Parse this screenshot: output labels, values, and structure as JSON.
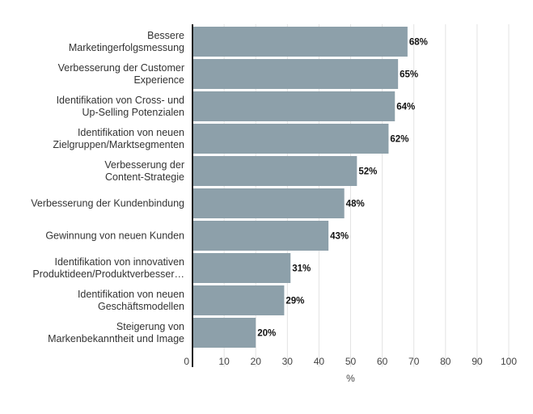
{
  "chart_data": {
    "type": "bar",
    "orientation": "horizontal",
    "categories": [
      [
        "Bessere",
        "Marketingerfolgsmessung"
      ],
      [
        "Verbesserung der Customer",
        "Experience"
      ],
      [
        "Identifikation von Cross- und",
        "Up-Selling Potenzialen"
      ],
      [
        "Identifikation von neuen",
        "Zielgruppen/Marktsegmenten"
      ],
      [
        "Verbesserung der",
        "Content-Strategie"
      ],
      [
        "Verbesserung der Kundenbindung"
      ],
      [
        "Gewinnung von neuen Kunden"
      ],
      [
        "Identifikation von innovativen",
        "Produktideen/Produktverbesser…"
      ],
      [
        "Identifikation von neuen",
        "Geschäftsmodellen"
      ],
      [
        "Steigerung von",
        "Markenbekanntheit und Image"
      ]
    ],
    "values": [
      68,
      65,
      64,
      62,
      52,
      48,
      43,
      31,
      29,
      20
    ],
    "value_labels": [
      "68%",
      "65%",
      "64%",
      "62%",
      "52%",
      "48%",
      "43%",
      "31%",
      "29%",
      "20%"
    ],
    "xlabel": "%",
    "ylabel": "",
    "xlim": [
      0,
      100
    ],
    "xticks": [
      0,
      10,
      20,
      30,
      40,
      50,
      60,
      70,
      80,
      90,
      100
    ],
    "grid": "vertical",
    "bar_color": "#8da0aa",
    "grid_color": "#e3e3e3",
    "axis_color": "#222222"
  }
}
